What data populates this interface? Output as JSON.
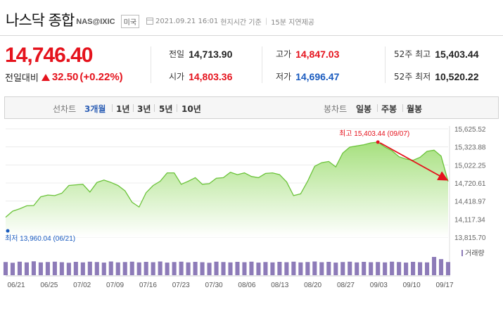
{
  "header": {
    "title": "나스닥 종합",
    "code": "NAS@IXIC",
    "country": "미국",
    "datetime": "2021.09.21 16:01",
    "time_basis": "현지시간 기준",
    "delay": "15분 지연제공"
  },
  "quote": {
    "price": "14,746.40",
    "change_label": "전일대비",
    "change_value": "32.50",
    "change_pct": "(+0.22%)"
  },
  "stats": {
    "prev_close": {
      "label": "전일",
      "value": "14,713.90"
    },
    "open": {
      "label": "시가",
      "value": "14,803.36"
    },
    "high": {
      "label": "고가",
      "value": "14,847.03"
    },
    "low": {
      "label": "저가",
      "value": "14,696.47"
    },
    "w52_high": {
      "label": "52주 최고",
      "value": "15,403.44"
    },
    "w52_low": {
      "label": "52주 최저",
      "value": "10,520.22"
    }
  },
  "tabs": {
    "line_label": "선차트",
    "periods": [
      "3개월",
      "1년",
      "3년",
      "5년",
      "10년"
    ],
    "active_period": "3개월",
    "candle_label": "봉차트",
    "candles": [
      "일봉",
      "주봉",
      "월봉"
    ]
  },
  "colors": {
    "up": "#e5131d",
    "down": "#1a5bbf",
    "line": "#6bc33a",
    "volume": "#8d7bb8",
    "annotation_arrow": "#e5131d"
  },
  "chart_data": {
    "type": "area",
    "ylim": [
      13815.7,
      15625.52
    ],
    "y_ticks": [
      "15,625.52",
      "15,323.88",
      "15,022.25",
      "14,720.61",
      "14,418.97",
      "14,117.34",
      "13,815.70"
    ],
    "x_labels": [
      "06/21",
      "06/25",
      "07/02",
      "07/09",
      "07/16",
      "07/23",
      "07/30",
      "08/06",
      "08/13",
      "08/20",
      "08/27",
      "09/03",
      "09/10",
      "09/17"
    ],
    "high_annotation": "최고 15,403.44 (09/07)",
    "low_annotation": "최저 13,960.04 (06/21)",
    "volume_label": "거래량",
    "values": [
      14150,
      14250,
      14290,
      14340,
      14345,
      14490,
      14520,
      14510,
      14550,
      14680,
      14690,
      14700,
      14570,
      14730,
      14770,
      14730,
      14680,
      14590,
      14400,
      14320,
      14560,
      14680,
      14750,
      14890,
      14890,
      14700,
      14750,
      14810,
      14700,
      14710,
      14800,
      14810,
      14900,
      14860,
      14890,
      14830,
      14810,
      14880,
      14890,
      14860,
      14740,
      14510,
      14540,
      14750,
      15000,
      15060,
      15080,
      14990,
      15220,
      15320,
      15340,
      15360,
      15390,
      15403.44,
      15320,
      15260,
      15160,
      15120,
      15100,
      15150,
      15250,
      15270,
      15170,
      14746.4
    ],
    "volumes": [
      0.72,
      0.68,
      0.74,
      0.7,
      0.76,
      0.7,
      0.72,
      0.74,
      0.71,
      0.68,
      0.73,
      0.7,
      0.74,
      0.72,
      0.69,
      0.75,
      0.7,
      0.72,
      0.74,
      0.7,
      0.73,
      0.71,
      0.75,
      0.69,
      0.72,
      0.74,
      0.7,
      0.73,
      0.71,
      0.68,
      0.74,
      0.72,
      0.7,
      0.73,
      0.71,
      0.74,
      0.69,
      0.72,
      0.7,
      0.73,
      0.71,
      0.74,
      0.7,
      0.72,
      0.75,
      0.71,
      0.73,
      0.69,
      0.72,
      0.74,
      0.7,
      0.73,
      0.71,
      0.72,
      0.7,
      0.74,
      0.72,
      0.69,
      0.73,
      0.71,
      0.7,
      1.0,
      0.88,
      0.72
    ]
  }
}
